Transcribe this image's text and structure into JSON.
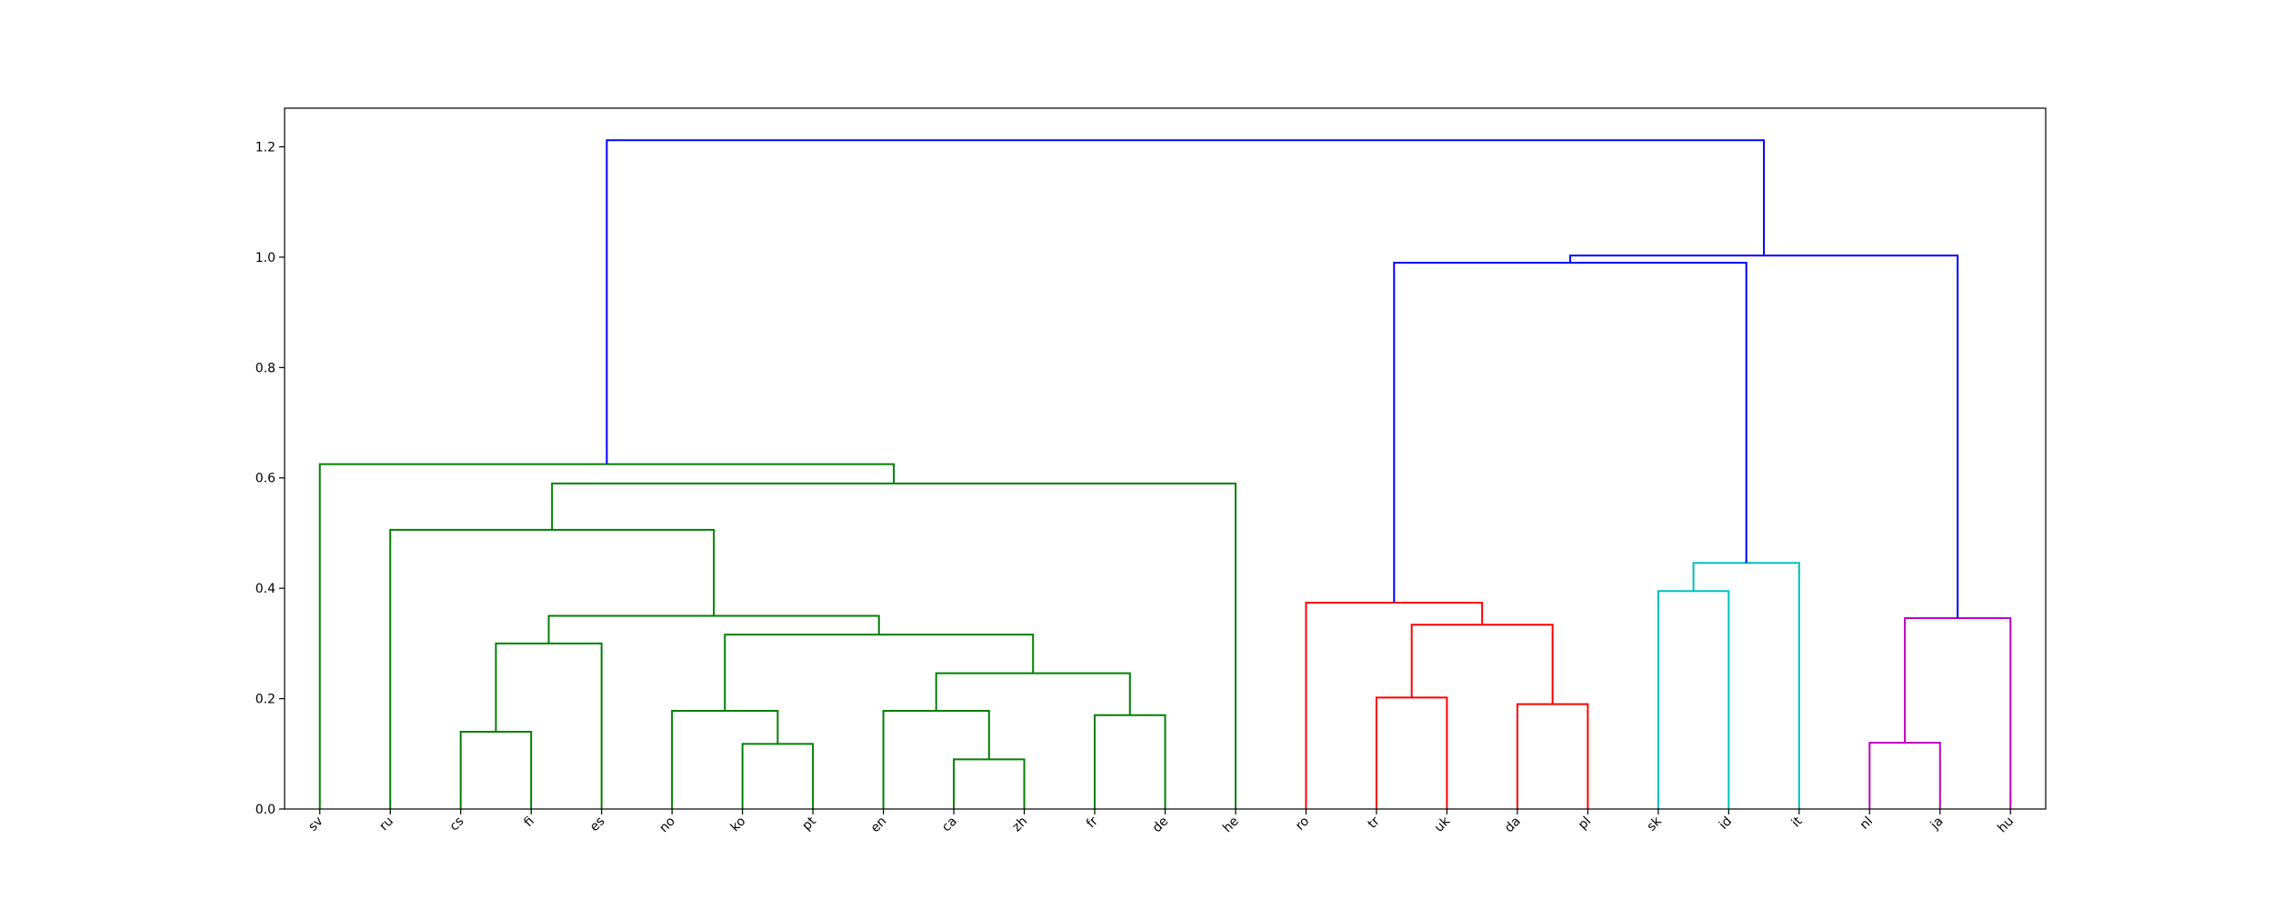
{
  "chart_data": {
    "type": "dendrogram",
    "title": "",
    "xlabel": "",
    "ylabel": "",
    "ylim": [
      0,
      1.27
    ],
    "yticks": [
      "0.0",
      "0.2",
      "0.4",
      "0.6",
      "0.8",
      "1.0",
      "1.2"
    ],
    "grid": false,
    "leaves": [
      "sv",
      "ru",
      "cs",
      "fi",
      "es",
      "no",
      "ko",
      "pt",
      "en",
      "ca",
      "zh",
      "fr",
      "de",
      "he",
      "ro",
      "tr",
      "uk",
      "da",
      "pl",
      "sk",
      "id",
      "it",
      "nl",
      "ja",
      "hu"
    ],
    "merges": [
      {
        "left": "ca",
        "right": "zh",
        "height": 0.09,
        "color": "#008000"
      },
      {
        "left": "ko",
        "right": "pt",
        "height": 0.118,
        "color": "#008000"
      },
      {
        "left": "nl",
        "right": "ja",
        "height": 0.12,
        "color": "#bf00bf"
      },
      {
        "left": "cs",
        "right": "fi",
        "height": 0.14,
        "color": "#008000"
      },
      {
        "left": "fr",
        "right": "de",
        "height": 0.17,
        "color": "#008000"
      },
      {
        "left": "no",
        "right": "(ko,pt)",
        "height": 0.178,
        "color": "#008000"
      },
      {
        "left": "en",
        "right": "(ca,zh)",
        "height": 0.178,
        "color": "#008000"
      },
      {
        "left": "da",
        "right": "pl",
        "height": 0.19,
        "color": "#ff0000"
      },
      {
        "left": "tr",
        "right": "uk",
        "height": 0.202,
        "color": "#ff0000"
      },
      {
        "left": "(en,ca,zh)",
        "right": "(fr,de)",
        "height": 0.246,
        "color": "#008000"
      },
      {
        "left": "(cs,fi)",
        "right": "es",
        "height": 0.3,
        "color": "#008000"
      },
      {
        "left": "(no,ko,pt)",
        "right": "(en,ca,zh,fr,de)",
        "height": 0.316,
        "color": "#008000"
      },
      {
        "left": "(tr,uk)",
        "right": "(da,pl)",
        "height": 0.334,
        "color": "#ff0000"
      },
      {
        "left": "(nl,ja)",
        "right": "hu",
        "height": 0.346,
        "color": "#bf00bf"
      },
      {
        "left": "(cs,fi,es)",
        "right": "(no,ko,pt,en,ca,zh,fr,de)",
        "height": 0.35,
        "color": "#008000"
      },
      {
        "left": "ro",
        "right": "(tr,uk,da,pl)",
        "height": 0.374,
        "color": "#ff0000"
      },
      {
        "left": "sk",
        "right": "id",
        "height": 0.395,
        "color": "#00bfbf"
      },
      {
        "left": "(sk,id)",
        "right": "it",
        "height": 0.446,
        "color": "#00bfbf"
      },
      {
        "left": "ru",
        "right": "(cs..de)",
        "height": 0.506,
        "color": "#008000"
      },
      {
        "left": "(ru..de)",
        "right": "he",
        "height": 0.59,
        "color": "#008000"
      },
      {
        "left": "sv",
        "right": "(ru..he)",
        "height": 0.625,
        "color": "#008000"
      },
      {
        "left": "(ro..pl)",
        "right": "(sk,id,it)",
        "height": 0.99,
        "color": "#0000ff"
      },
      {
        "left": "(ro..it)",
        "right": "(nl,ja,hu)",
        "height": 1.003,
        "color": "#0000ff"
      },
      {
        "left": "(sv..he)",
        "right": "(ro..hu)",
        "height": 1.212,
        "color": "#0000ff"
      }
    ]
  }
}
